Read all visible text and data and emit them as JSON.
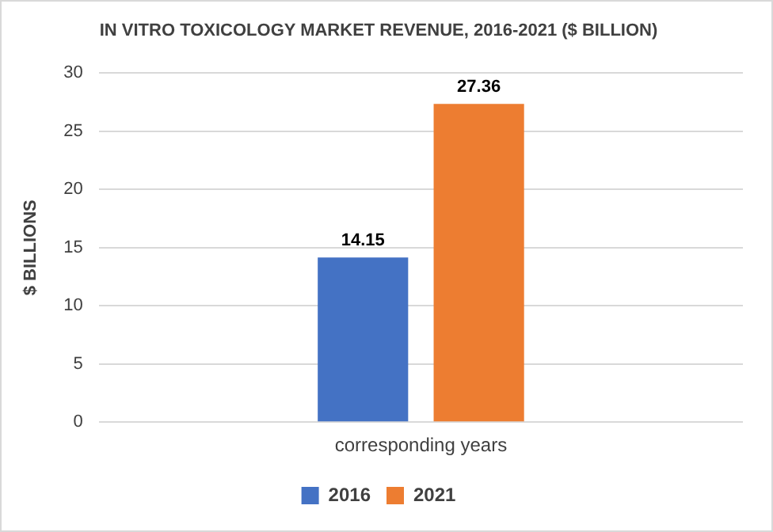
{
  "chart_data": {
    "type": "bar",
    "title": "IN VITRO TOXICOLOGY MARKET REVENUE, 2016-2021 ($ BILLION)",
    "ylabel": "$ BILLIONS",
    "categories": [
      "corresponding years"
    ],
    "series": [
      {
        "name": "2016",
        "color": "#4472c4",
        "values": [
          14.15
        ]
      },
      {
        "name": "2021",
        "color": "#ed7d31",
        "values": [
          27.36
        ]
      }
    ],
    "ylim": [
      0,
      30
    ],
    "yticks": [
      0,
      5,
      10,
      15,
      20,
      25,
      30
    ],
    "grid": "y",
    "legend": "bottom",
    "data_labels": true
  }
}
